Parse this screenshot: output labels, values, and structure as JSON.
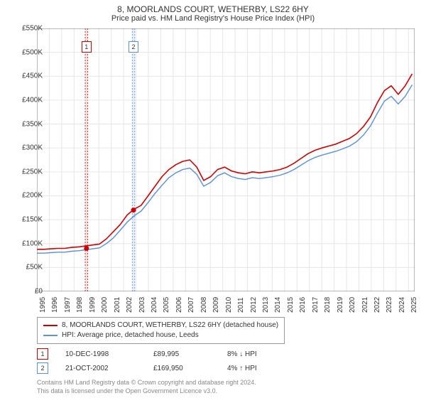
{
  "title": "8, MOORLANDS COURT, WETHERBY, LS22 6HY",
  "subtitle": "Price paid vs. HM Land Registry's House Price Index (HPI)",
  "chart": {
    "type": "line",
    "background_color": "#ffffff",
    "grid_color": "#e6e6e6",
    "axis_color": "#707070",
    "ylim": [
      0,
      550000
    ],
    "ytick_step": 50000,
    "ytick_labels": [
      "£0",
      "£50K",
      "£100K",
      "£150K",
      "£200K",
      "£250K",
      "£300K",
      "£350K",
      "£400K",
      "£450K",
      "£500K",
      "£550K"
    ],
    "x_years": [
      1995,
      1996,
      1997,
      1998,
      1999,
      2000,
      2001,
      2002,
      2003,
      2004,
      2005,
      2006,
      2007,
      2008,
      2009,
      2010,
      2011,
      2012,
      2013,
      2014,
      2015,
      2016,
      2017,
      2018,
      2019,
      2020,
      2021,
      2022,
      2023,
      2024,
      2025
    ],
    "series": [
      {
        "name": "8, MOORLANDS COURT, WETHERBY, LS22 6HY (detached house)",
        "color": "#cc0000",
        "width": 1.6,
        "values_k": [
          88,
          88,
          89,
          90,
          90,
          92,
          93,
          95,
          97,
          99,
          110,
          125,
          140,
          160,
          172,
          180,
          200,
          220,
          240,
          255,
          265,
          272,
          275,
          260,
          232,
          240,
          255,
          260,
          252,
          248,
          246,
          250,
          248,
          250,
          252,
          255,
          260,
          268,
          278,
          288,
          295,
          300,
          304,
          308,
          314,
          320,
          330,
          345,
          365,
          395,
          420,
          430,
          412,
          430,
          455
        ]
      },
      {
        "name": "HPI: Average price, detached house, Leeds",
        "color": "#5b8fd6",
        "width": 1.4,
        "values_k": [
          80,
          80,
          81,
          82,
          82,
          84,
          85,
          87,
          89,
          91,
          100,
          112,
          128,
          145,
          158,
          168,
          186,
          205,
          222,
          238,
          248,
          255,
          258,
          245,
          220,
          228,
          242,
          248,
          240,
          236,
          234,
          238,
          236,
          238,
          240,
          243,
          248,
          255,
          264,
          273,
          280,
          285,
          289,
          293,
          298,
          304,
          313,
          327,
          346,
          373,
          398,
          408,
          392,
          408,
          432
        ]
      }
    ],
    "sale_bands": [
      {
        "year_start": 1998.9,
        "year_end": 1999.1,
        "color": "#f4e3e3",
        "border": "#cc0000"
      },
      {
        "year_start": 2002.7,
        "year_end": 2002.9,
        "color": "#e3ecf6",
        "border": "#5b8fd6"
      }
    ],
    "sale_markers_on_line": [
      {
        "year": 1999.0,
        "value_k": 90,
        "color": "#cc0000"
      },
      {
        "year": 2002.8,
        "value_k": 170,
        "color": "#cc0000"
      }
    ],
    "chart_marker_boxes": [
      {
        "label": "1",
        "year": 1999.0,
        "border": "#cc0000"
      },
      {
        "label": "2",
        "year": 2002.8,
        "border": "#5b8fd6"
      }
    ]
  },
  "legend": {
    "rows": [
      {
        "color": "#cc0000",
        "label": "8, MOORLANDS COURT, WETHERBY, LS22 6HY (detached house)"
      },
      {
        "color": "#5b8fd6",
        "label": "HPI: Average price, detached house, Leeds"
      }
    ]
  },
  "sales": [
    {
      "n": "1",
      "border": "#cc0000",
      "date": "10-DEC-1998",
      "price": "£89,995",
      "delta": "8% ↓ HPI"
    },
    {
      "n": "2",
      "border": "#5b8fd6",
      "date": "21-OCT-2002",
      "price": "£169,950",
      "delta": "4% ↑ HPI"
    }
  ],
  "footer": {
    "line1": "Contains HM Land Registry data © Crown copyright and database right 2024.",
    "line2": "This data is licensed under the Open Government Licence v3.0."
  }
}
